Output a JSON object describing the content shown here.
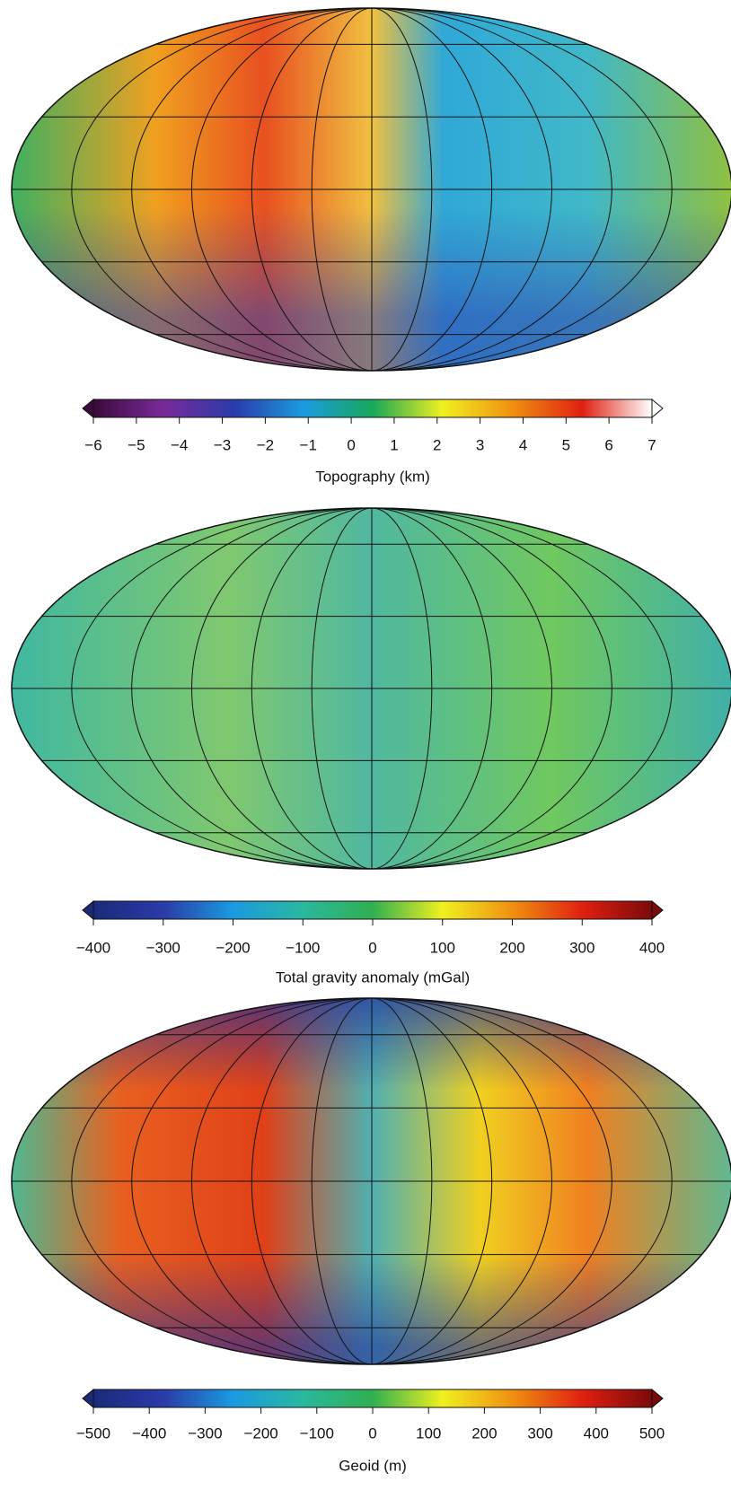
{
  "chart_data": [
    {
      "type": "colorbar",
      "xlabel": "Topography (km)",
      "xlim": [
        -6,
        7
      ],
      "xticks": [
        {
          "value": -6,
          "label": "−6"
        },
        {
          "value": -5,
          "label": "−5"
        },
        {
          "value": -4,
          "label": "−4"
        },
        {
          "value": -3,
          "label": "−3"
        },
        {
          "value": -2,
          "label": "−2"
        },
        {
          "value": -1,
          "label": "−1"
        },
        0,
        1,
        2,
        3,
        4,
        5,
        6,
        7
      ],
      "colors": [
        "#3a0a3c",
        "#7a2a9a",
        "#2a3aa8",
        "#1a9ae0",
        "#18a85a",
        "#f0f020",
        "#f09010",
        "#e02010",
        "#ffffff"
      ]
    },
    {
      "type": "colorbar",
      "xlabel": "Total gravity anomaly (mGal)",
      "xlim": [
        -400,
        400
      ],
      "xticks": [
        {
          "value": -400,
          "label": "−400"
        },
        {
          "value": -300,
          "label": "−300"
        },
        {
          "value": -200,
          "label": "−200"
        },
        {
          "value": -100,
          "label": "−100"
        },
        0,
        100,
        200,
        300,
        400
      ],
      "colors": [
        "#1a2a7a",
        "#2a3aa8",
        "#1a9ae0",
        "#2ab8a0",
        "#30b050",
        "#f0f020",
        "#f09010",
        "#e02010",
        "#7a0a0a"
      ]
    },
    {
      "type": "colorbar",
      "xlabel": "Geoid (m)",
      "xlim": [
        -500,
        500
      ],
      "xticks": [
        {
          "value": -500,
          "label": "−500"
        },
        {
          "value": -400,
          "label": "−400"
        },
        {
          "value": -300,
          "label": "−300"
        },
        {
          "value": -200,
          "label": "−200"
        },
        {
          "value": -100,
          "label": "−100"
        },
        0,
        100,
        200,
        300,
        400,
        500
      ],
      "colors": [
        "#1a2a7a",
        "#2a3aa8",
        "#1a9ae0",
        "#2ab8a0",
        "#30b050",
        "#f0f020",
        "#f09010",
        "#e02010",
        "#7a0a0a"
      ]
    }
  ]
}
